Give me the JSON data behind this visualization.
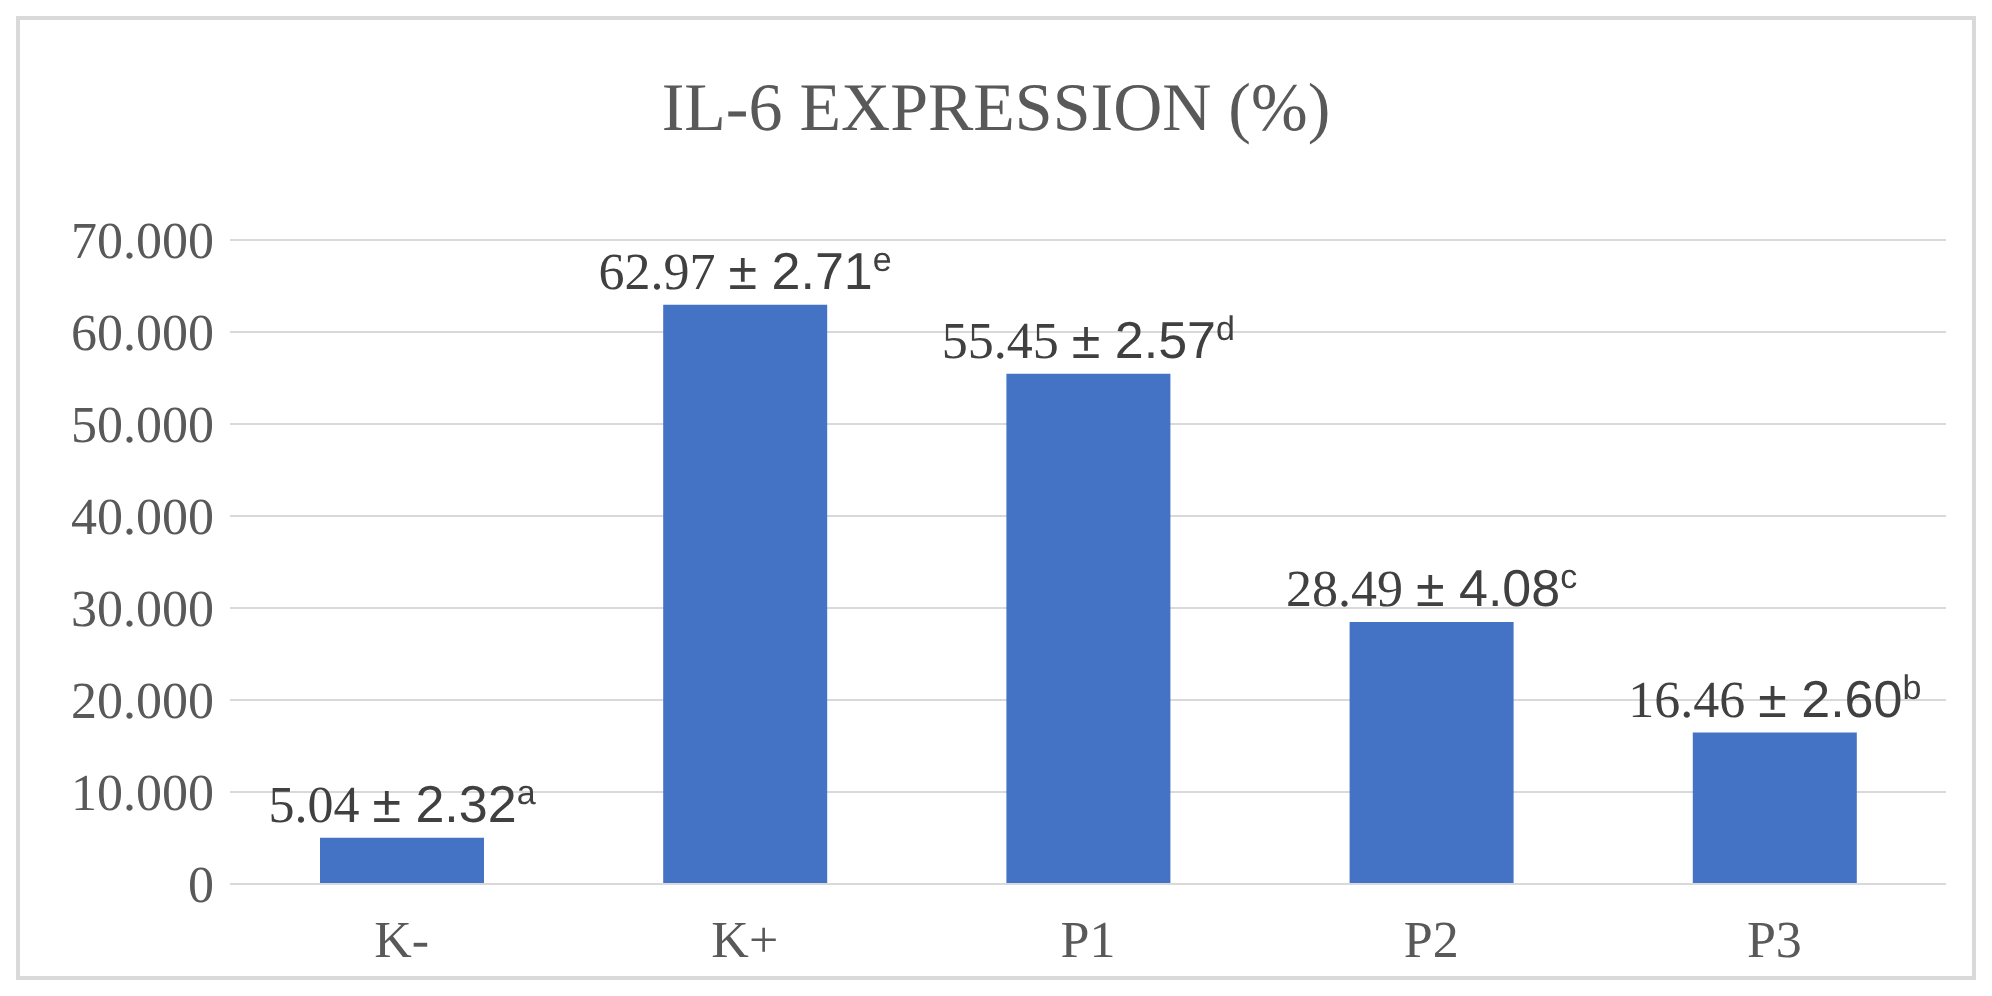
{
  "chart_data": {
    "type": "bar",
    "title": "IL-6 EXPRESSION (%)",
    "categories": [
      "K-",
      "K+",
      "P1",
      "P2",
      "P3"
    ],
    "values": [
      5.04,
      62.97,
      55.45,
      28.49,
      16.46
    ],
    "value_labels": [
      "5.04 ± 2.32$^{a}$",
      "62.97 ± 2.71$^{e}$",
      "55.45 ± 2.57$^{d}$",
      "28.49 ± 4.08$^{c}$",
      "16.46 ± 2.60$^{b}$"
    ],
    "color": "#4472c4",
    "ylim": [
      0,
      70
    ],
    "yticks": [
      0,
      {
        "value": 10,
        "label": "10.000"
      },
      {
        "value": 20,
        "label": "20.000"
      },
      {
        "value": 30,
        "label": "30.000"
      },
      {
        "value": 40,
        "label": "40.000"
      },
      {
        "value": 50,
        "label": "50.000"
      },
      {
        "value": 60,
        "label": "60.000"
      },
      {
        "value": 70,
        "label": "70.000"
      }
    ],
    "grid": "y"
  }
}
